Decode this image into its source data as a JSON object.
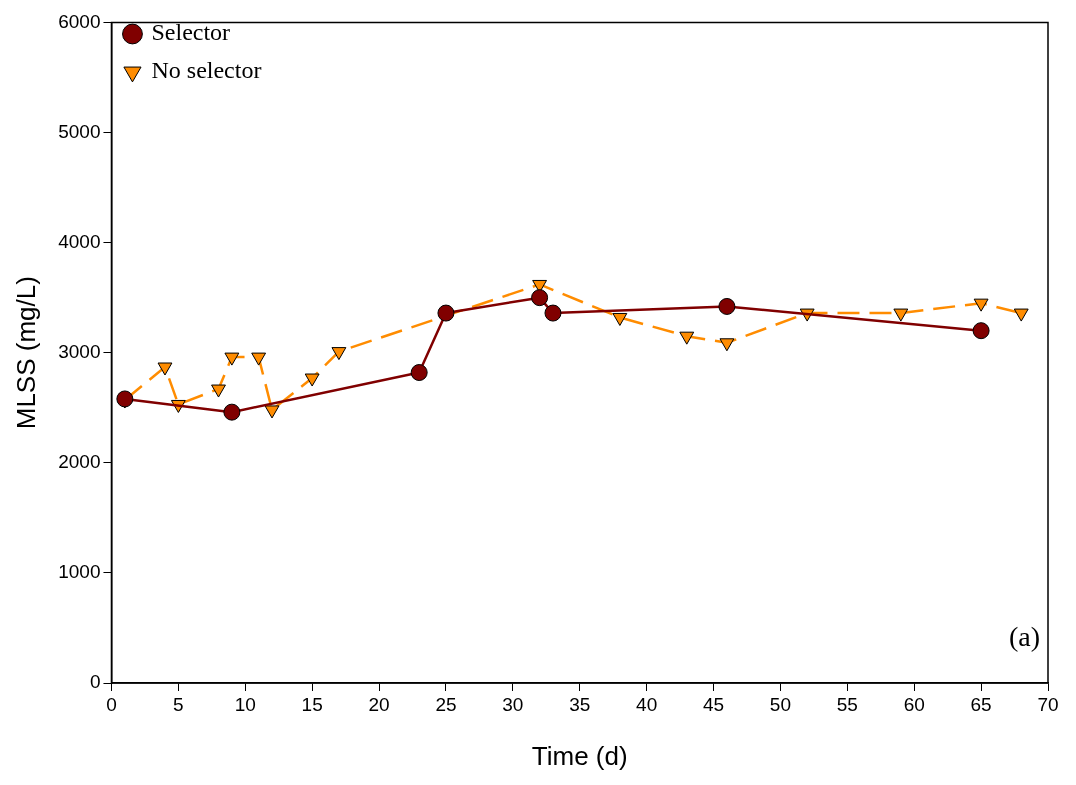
{
  "chart_data": {
    "type": "line",
    "xlabel": "Time (d)",
    "ylabel": "MLSS (mg/L)",
    "xlim": [
      0,
      70
    ],
    "xticks": [
      0,
      5,
      10,
      15,
      20,
      25,
      30,
      35,
      40,
      45,
      50,
      55,
      60,
      65,
      70
    ],
    "ylim": [
      0,
      6000
    ],
    "yticks": [
      0,
      1000,
      2000,
      3000,
      4000,
      5000,
      6000
    ],
    "grid": false,
    "legend": "top left",
    "annotations": [
      "(a)"
    ],
    "series": [
      {
        "name": "Selector",
        "color": "#800000",
        "marker": "circle",
        "line_style": "solid",
        "x": [
          1,
          9,
          23,
          25,
          32,
          33,
          46,
          65
        ],
        "values": [
          2580,
          2460,
          2820,
          3360,
          3500,
          3360,
          3420,
          3200
        ]
      },
      {
        "name": "No selector",
        "color": "#ff8c00",
        "marker": "triangle",
        "line_style": "dashed",
        "x": [
          1,
          4,
          5,
          8,
          9,
          11,
          12,
          15,
          17,
          25,
          32,
          38,
          43,
          46,
          52,
          59,
          65,
          68
        ],
        "values": [
          2570,
          2870,
          2530,
          2670,
          2960,
          2960,
          2480,
          2770,
          3010,
          null,
          3620,
          3320,
          3150,
          3090,
          3360,
          3360,
          3450,
          3360
        ]
      }
    ]
  }
}
